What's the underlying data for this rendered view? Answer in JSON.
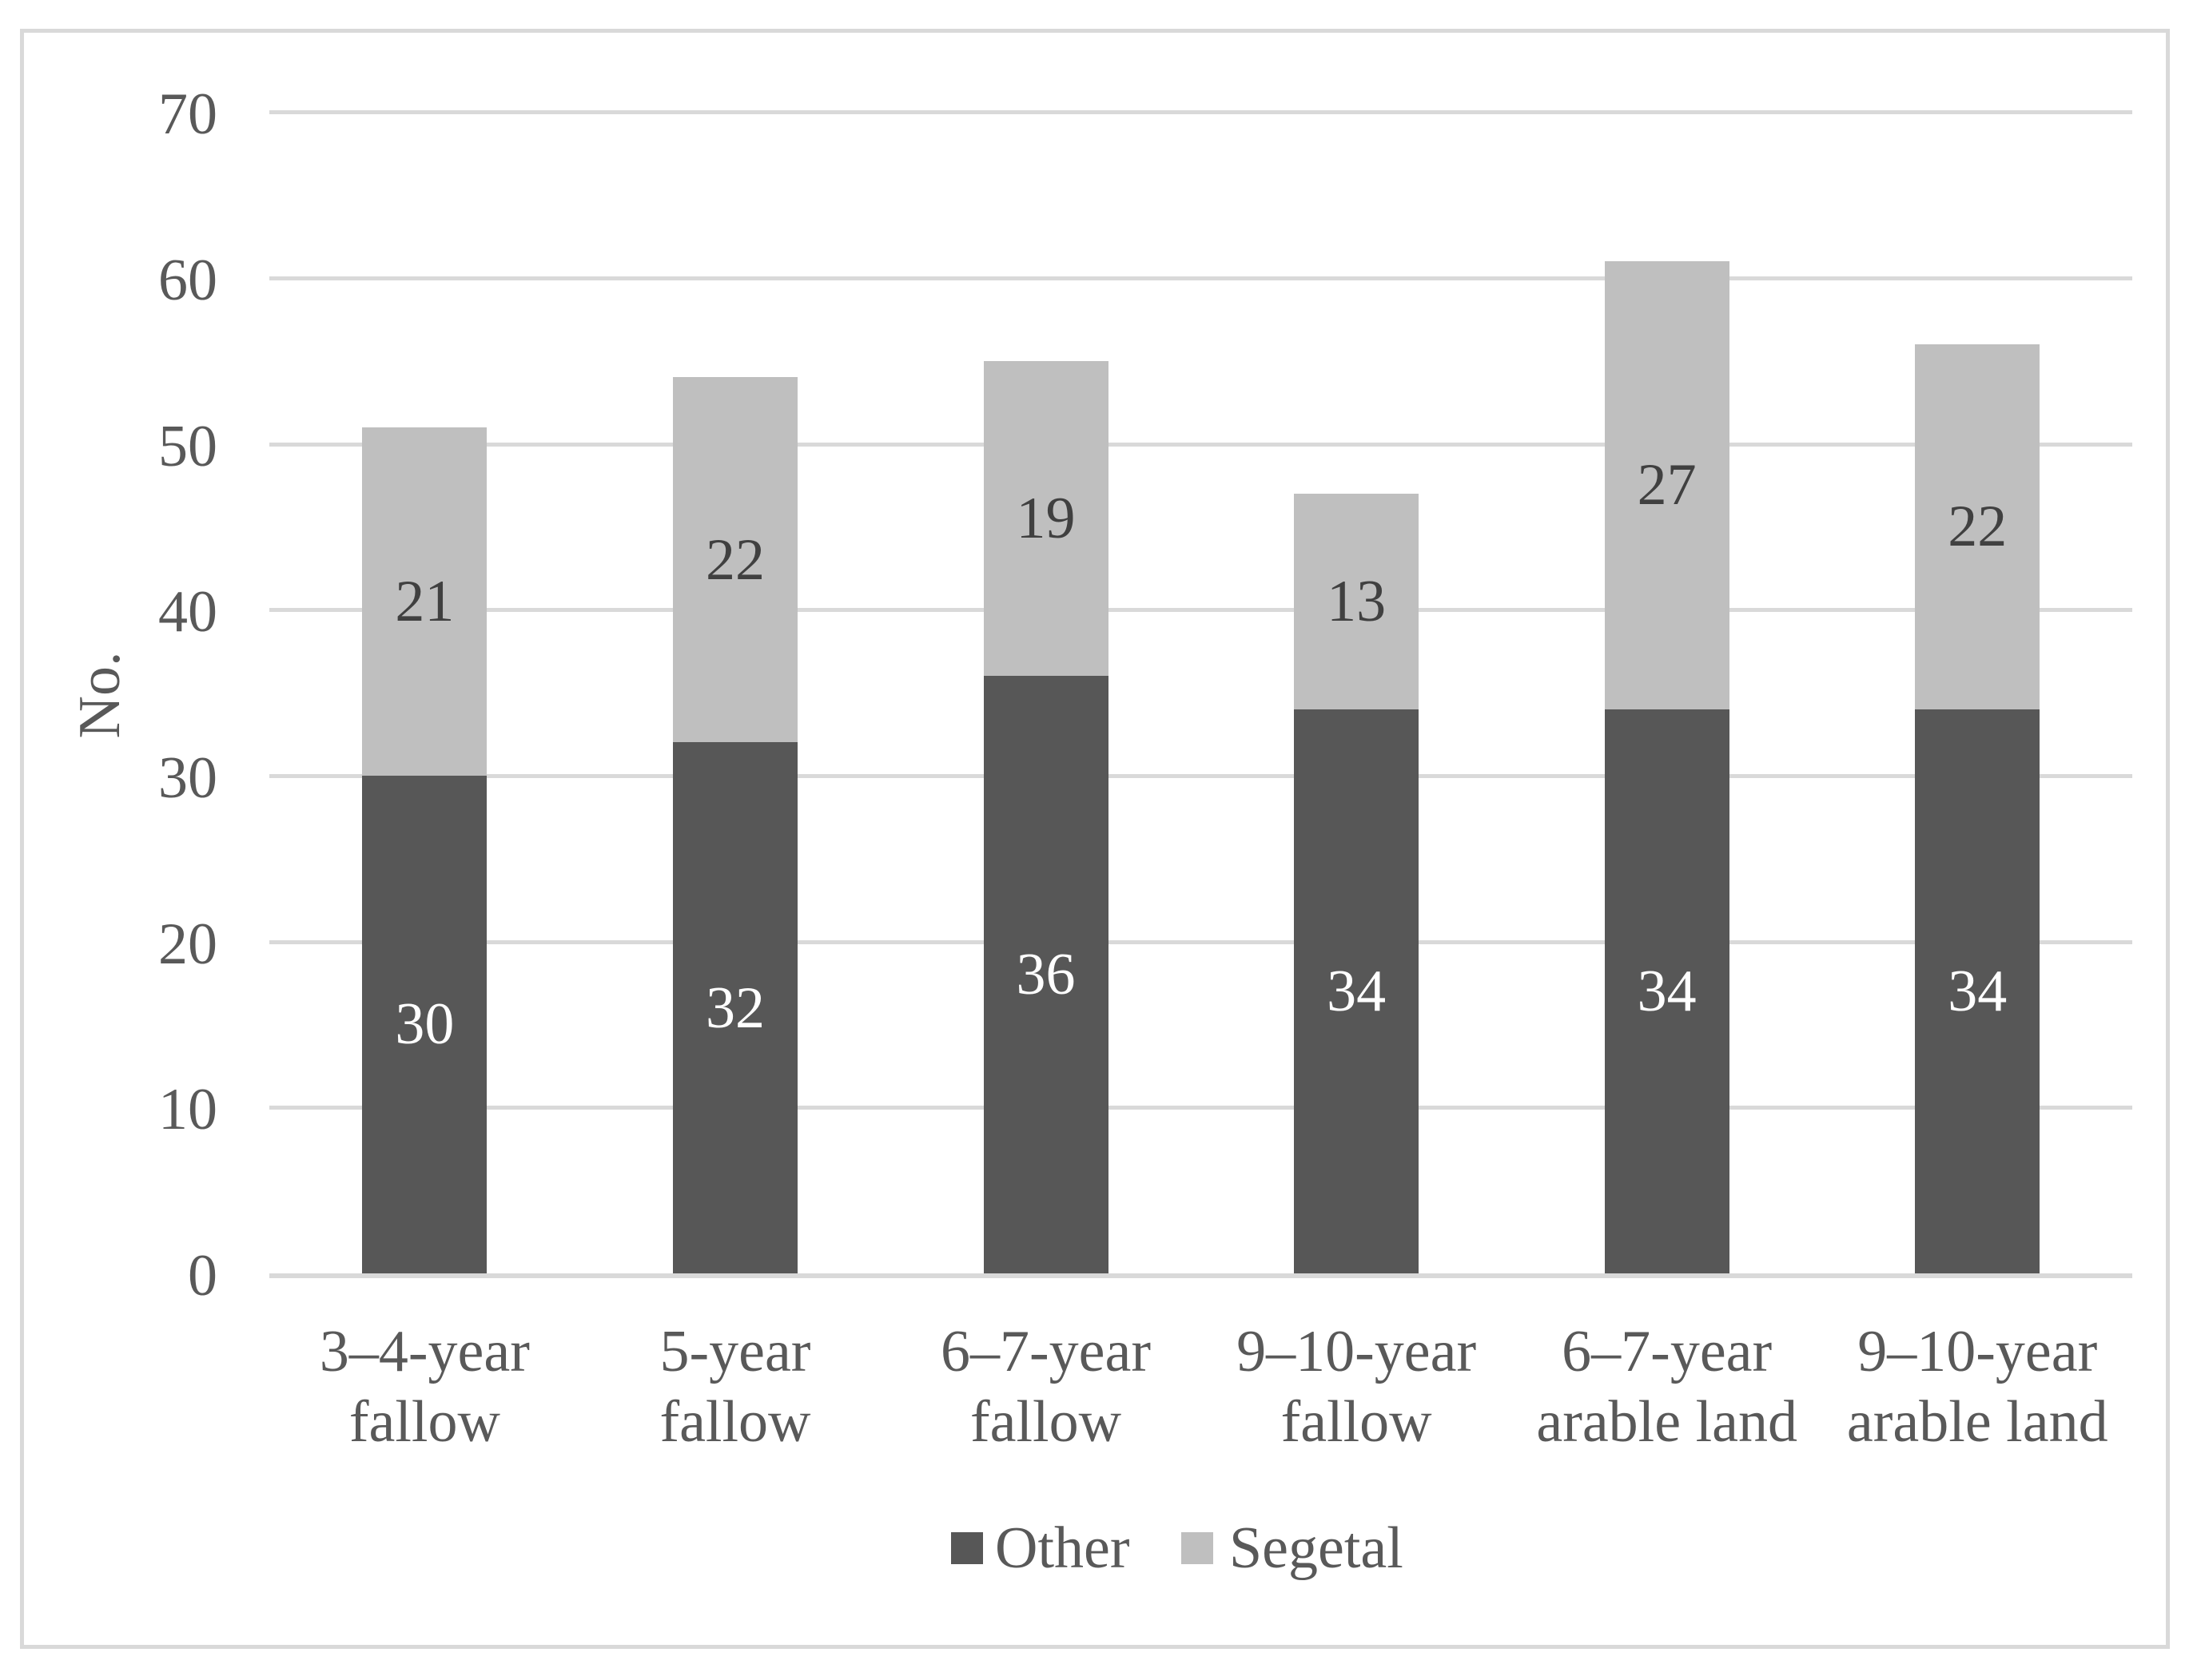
{
  "chart_data": {
    "type": "bar",
    "stacked": true,
    "title": "",
    "xlabel": "",
    "ylabel": "No.",
    "ylim": [
      0,
      70
    ],
    "yticks": [
      0,
      10,
      20,
      30,
      40,
      50,
      60,
      70
    ],
    "grid": true,
    "legend_position": "bottom",
    "categories": [
      "3–4-year\nfallow",
      "5-year\nfallow",
      "6–7-year\nfallow",
      "9–10-year\nfallow",
      "6–7-year\narable land",
      "9–10-year\narable land"
    ],
    "series": [
      {
        "name": "Other",
        "color": "#575757",
        "label_color": "#ffffff",
        "values": [
          30,
          32,
          36,
          34,
          34,
          34
        ]
      },
      {
        "name": "Segetal",
        "color": "#bfbfbf",
        "label_color": "#404040",
        "values": [
          21,
          22,
          19,
          13,
          27,
          22
        ]
      }
    ]
  },
  "colors": {
    "gridline": "#d9d9d9",
    "frame": "#d9d9d9",
    "axis_text": "#595959"
  }
}
